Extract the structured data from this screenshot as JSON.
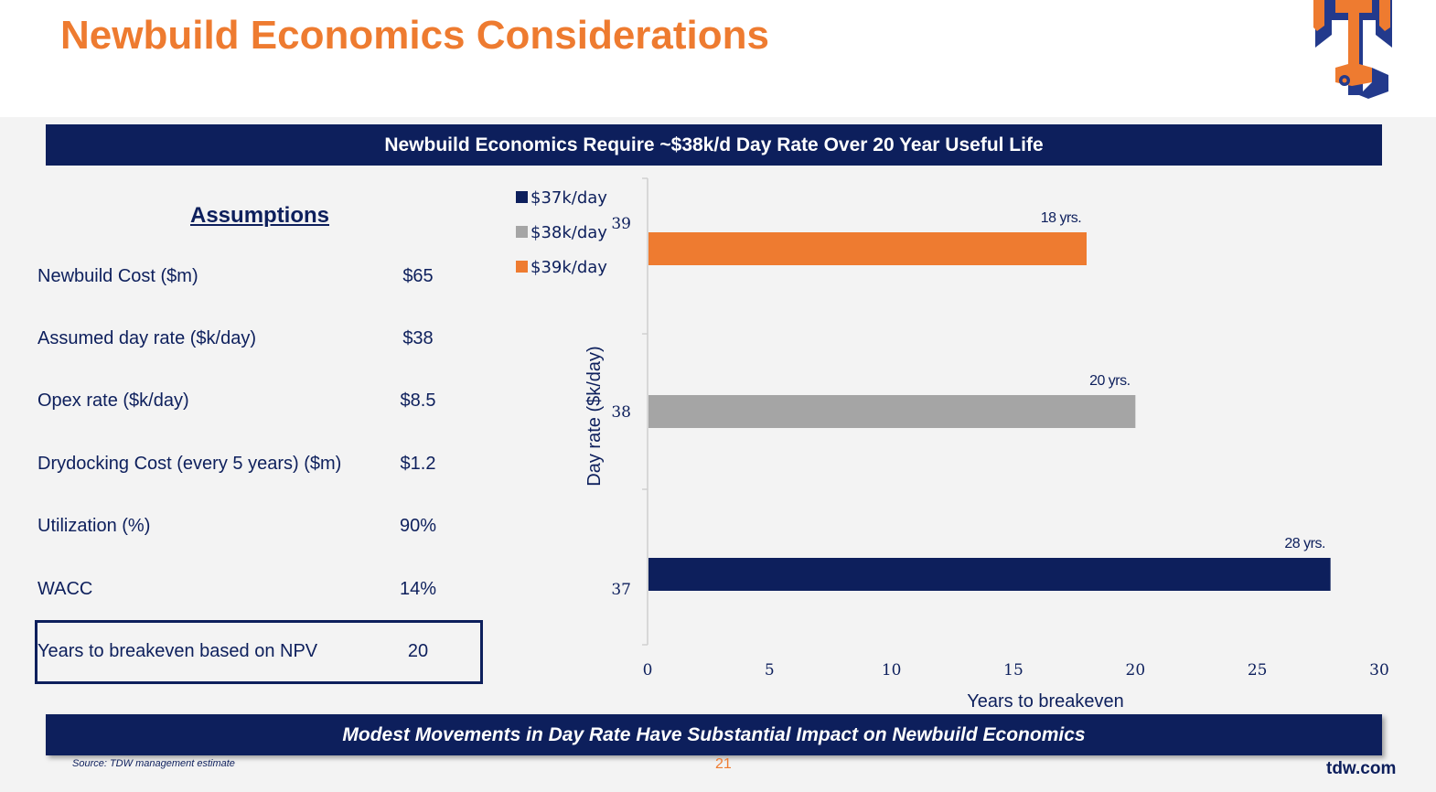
{
  "page": {
    "title": "Newbuild Economics Considerations",
    "top_banner": "Newbuild Economics Require ~$38k/d Day Rate Over 20 Year Useful Life",
    "bottom_banner": "Modest Movements in Day Rate Have Substantial Impact on Newbuild Economics",
    "source": "Source: TDW management estimate",
    "page_number": "21",
    "site": "tdw.com"
  },
  "assumptions": {
    "heading": "Assumptions",
    "rows": [
      {
        "label": "Newbuild Cost ($m)",
        "value": "$65"
      },
      {
        "label": "Assumed day rate ($k/day)",
        "value": "$38"
      },
      {
        "label": "Opex rate ($k/day)",
        "value": "$8.5"
      },
      {
        "label": "Drydocking Cost (every 5 years) ($m)",
        "value": "$1.2"
      },
      {
        "label": "Utilization (%)",
        "value": "90%"
      },
      {
        "label": "WACC",
        "value": "14%"
      },
      {
        "label": "Years to breakeven based on NPV",
        "value": "20"
      }
    ]
  },
  "colors": {
    "navy": "#0d1f5c",
    "orange": "#ee7b30",
    "gray": "#a5a5a5",
    "background": "#f3f3f3"
  },
  "chart_data": {
    "type": "bar",
    "orientation": "horizontal",
    "title": "",
    "xlabel": "Years to breakeven",
    "ylabel": "Day rate ($k/day)",
    "xlim": [
      0,
      30
    ],
    "x_ticks": [
      "0",
      "5",
      "10",
      "15",
      "20",
      "25",
      "30"
    ],
    "categories": [
      "37",
      "38",
      "39"
    ],
    "values": [
      28,
      20,
      18
    ],
    "data_labels": [
      "28 yrs.",
      "20 yrs.",
      "18 yrs."
    ],
    "bar_colors": [
      "#0d1f5c",
      "#a5a5a5",
      "#ee7b30"
    ],
    "legend": [
      {
        "label": "$37k/day",
        "color": "#0d1f5c"
      },
      {
        "label": "$38k/day",
        "color": "#a5a5a5"
      },
      {
        "label": "$39k/day",
        "color": "#ee7b30"
      }
    ],
    "legend_position": "top-left",
    "grid": false
  }
}
